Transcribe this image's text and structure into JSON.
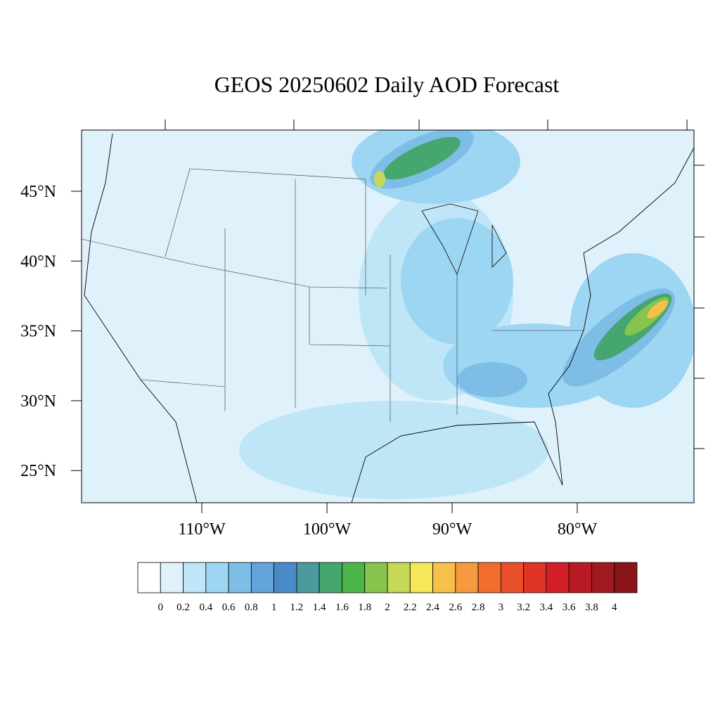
{
  "title": "GEOS 20250602 Daily AOD Forecast",
  "lat_ticks": [
    {
      "value": 45,
      "label": "45°N"
    },
    {
      "value": 40,
      "label": "40°N"
    },
    {
      "value": 35,
      "label": "35°N"
    },
    {
      "value": 30,
      "label": "30°N"
    },
    {
      "value": 25,
      "label": "25°N"
    }
  ],
  "lon_ticks": [
    {
      "value": -110,
      "label": "110°W"
    },
    {
      "value": -100,
      "label": "100°W"
    },
    {
      "value": -90,
      "label": "90°W"
    },
    {
      "value": -80,
      "label": "80°W"
    }
  ],
  "colorbar": {
    "colors": [
      "#ffffff",
      "#dff2fb",
      "#bfe6f7",
      "#9dd6f2",
      "#7dbde6",
      "#62a3d9",
      "#4a8ac9",
      "#4a9c9c",
      "#46a670",
      "#4cb64a",
      "#87c44e",
      "#c5d857",
      "#f6e65a",
      "#f7c04a",
      "#f59a3e",
      "#f26c2e",
      "#e94f2b",
      "#de3427",
      "#d21f2a",
      "#b81b24",
      "#a01a20",
      "#8a1418"
    ],
    "labels": [
      0,
      0.2,
      0.4,
      0.6,
      0.8,
      1,
      1.2,
      1.4,
      1.6,
      1.8,
      2,
      2.2,
      2.4,
      2.6,
      2.8,
      3,
      3.2,
      3.4,
      3.6,
      3.8,
      4
    ]
  }
}
